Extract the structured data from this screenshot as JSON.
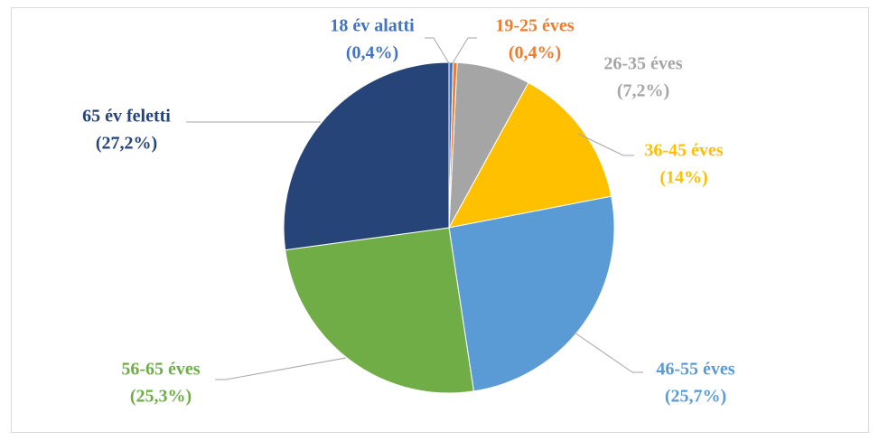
{
  "chart_data": {
    "type": "pie",
    "categories": [
      "18 év alatti",
      "19-25 éves",
      "26-35 éves",
      "36-45 éves",
      "46-55 éves",
      "56-65 éves",
      "65 év feletti"
    ],
    "values": [
      0.4,
      0.4,
      7.2,
      14,
      25.7,
      25.3,
      27.2
    ],
    "value_labels": [
      "(0,4%)",
      "(0,4%)",
      "(7,2%)",
      "(14%)",
      "(25,7%)",
      "(25,3%)",
      "(27,2%)"
    ],
    "colors": [
      "#4472c4",
      "#ed7d31",
      "#a5a5a5",
      "#ffc000",
      "#5b9bd5",
      "#70ad47",
      "#264478"
    ]
  }
}
